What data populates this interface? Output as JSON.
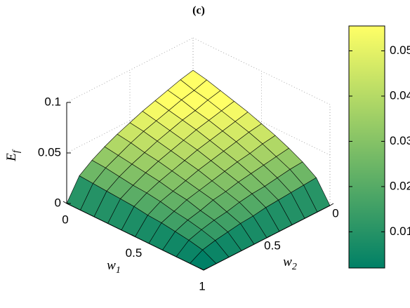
{
  "chart_data": {
    "type": "surface",
    "title": "(c)",
    "xlabel": {
      "text": "w",
      "subscript": "1"
    },
    "ylabel": {
      "text": "w",
      "subscript": "2"
    },
    "zlabel": {
      "text": "E",
      "subscript": "f"
    },
    "x": [
      0,
      0.1,
      0.2,
      0.3,
      0.4,
      0.5,
      0.6,
      0.7,
      0.8,
      0.9,
      1
    ],
    "y": [
      0,
      0.1,
      0.2,
      0.3,
      0.4,
      0.5,
      0.6,
      0.7,
      0.8,
      0.9,
      1
    ],
    "z": [
      [
        0.068,
        0.065,
        0.061,
        0.057,
        0.053,
        0.048,
        0.043,
        0.037,
        0.03,
        0.021,
        0
      ],
      [
        0.065,
        0.061,
        0.058,
        0.054,
        0.05,
        0.046,
        0.041,
        0.035,
        0.029,
        0.02,
        0
      ],
      [
        0.061,
        0.058,
        0.054,
        0.051,
        0.047,
        0.043,
        0.038,
        0.033,
        0.027,
        0.019,
        0
      ],
      [
        0.057,
        0.054,
        0.051,
        0.048,
        0.044,
        0.04,
        0.036,
        0.031,
        0.025,
        0.018,
        0
      ],
      [
        0.053,
        0.05,
        0.047,
        0.044,
        0.041,
        0.037,
        0.033,
        0.029,
        0.024,
        0.017,
        0
      ],
      [
        0.048,
        0.046,
        0.043,
        0.04,
        0.037,
        0.034,
        0.03,
        0.026,
        0.022,
        0.015,
        0
      ],
      [
        0.043,
        0.041,
        0.038,
        0.036,
        0.033,
        0.03,
        0.027,
        0.024,
        0.019,
        0.014,
        0
      ],
      [
        0.037,
        0.035,
        0.033,
        0.031,
        0.029,
        0.026,
        0.024,
        0.02,
        0.017,
        0.012,
        0
      ],
      [
        0.03,
        0.029,
        0.027,
        0.025,
        0.024,
        0.022,
        0.019,
        0.017,
        0.014,
        0.01,
        0
      ],
      [
        0.021,
        0.02,
        0.019,
        0.018,
        0.017,
        0.015,
        0.014,
        0.012,
        0.01,
        0.007,
        0
      ],
      [
        0,
        0,
        0,
        0,
        0,
        0,
        0,
        0,
        0,
        0,
        0
      ]
    ],
    "xlim": [
      0,
      1
    ],
    "xticks": [
      0,
      0.5,
      1
    ],
    "ylim": [
      0,
      1
    ],
    "yticks": [
      0,
      0.5,
      1
    ],
    "zlim": [
      0,
      0.1
    ],
    "zticks": [
      0,
      0.05,
      0.1
    ],
    "colormap": [
      "#008066",
      "#ffff66"
    ],
    "clim": [
      0.002,
      0.0555
    ],
    "cticks": [
      0.01,
      0.02,
      0.03,
      0.04,
      0.05
    ],
    "grid": true
  }
}
